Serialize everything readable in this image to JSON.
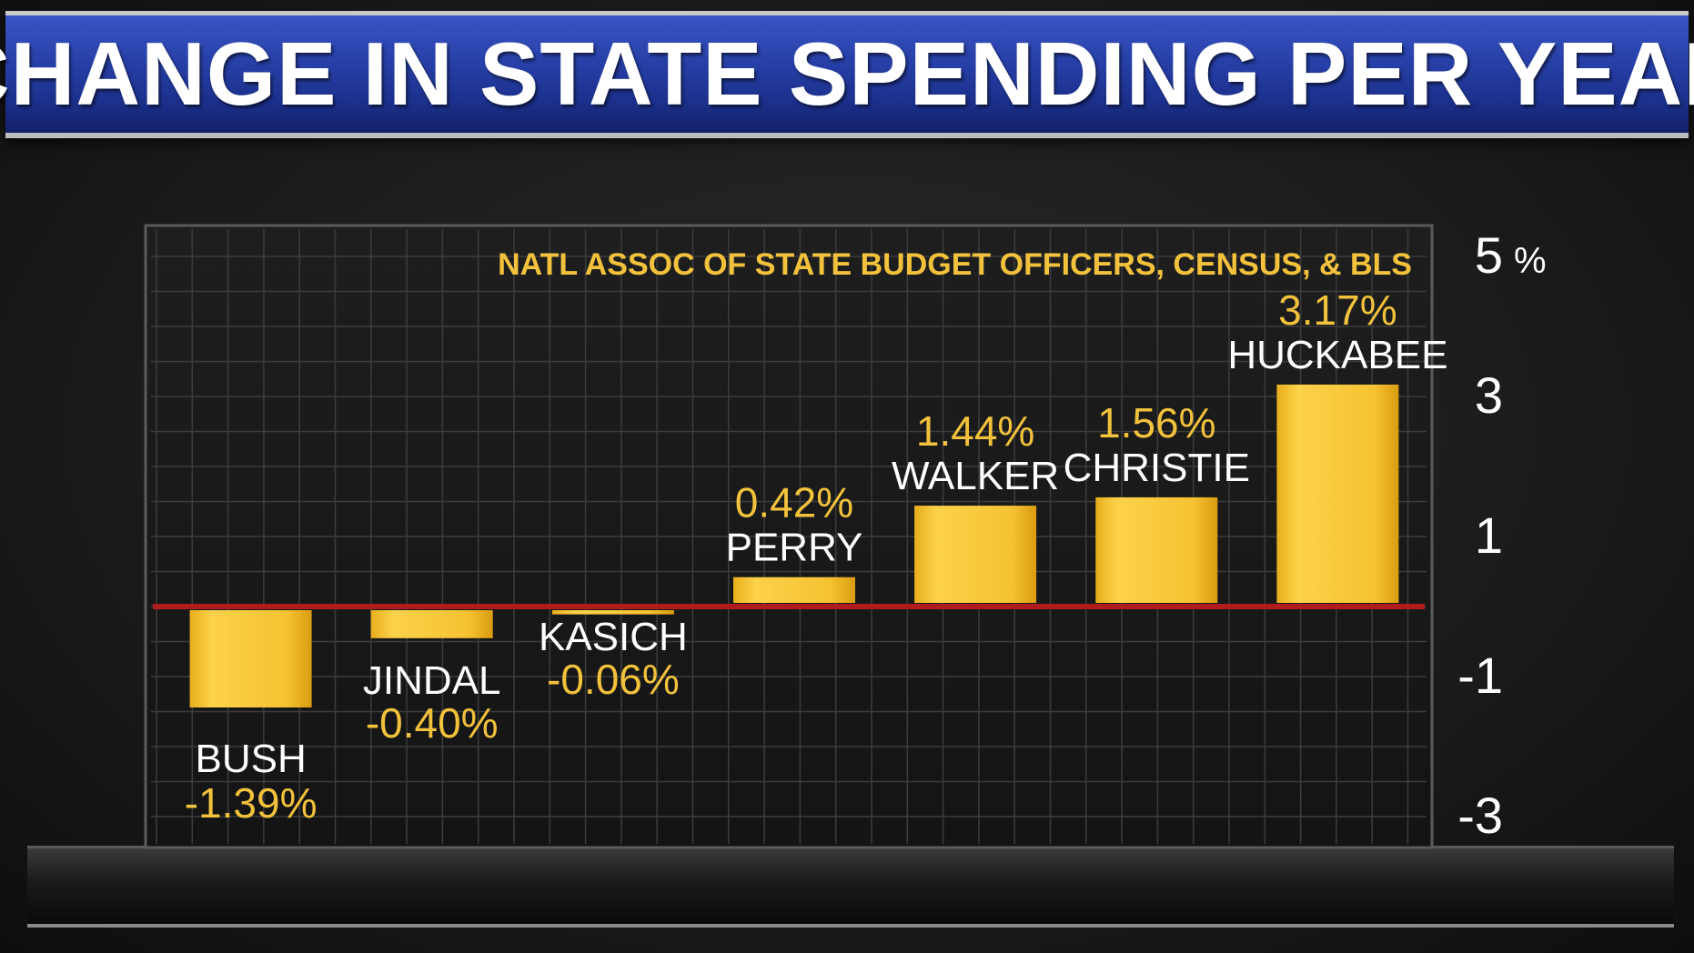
{
  "title": "CHANGE IN STATE SPENDING PER YEAR",
  "colors": {
    "bar": "#f5c436",
    "bar_dark": "#d89f12",
    "value_label": "#f2c23c",
    "name_label": "#ffffff",
    "zero_line": "#b01c1c",
    "title_bg": "#2740a8",
    "grid": "#3c3c3c"
  },
  "chart_data": {
    "type": "bar",
    "source": "NATL ASSOC OF STATE BUDGET OFFICERS, CENSUS, & BLS",
    "categories": [
      "BUSH",
      "JINDAL",
      "KASICH",
      "PERRY",
      "WALKER",
      "CHRISTIE",
      "HUCKABEE"
    ],
    "values": [
      -1.39,
      -0.4,
      -0.06,
      0.42,
      1.44,
      1.56,
      3.17
    ],
    "value_labels": [
      "-1.39%",
      "-0.40%",
      "-0.06%",
      "0.42%",
      "1.44%",
      "1.56%",
      "3.17%"
    ],
    "ylim": [
      -3.3,
      5.0
    ],
    "yticks": [
      5,
      3,
      1,
      -1,
      -3
    ],
    "ytick_labels": [
      "5",
      "3",
      "1",
      "-1",
      "-3"
    ],
    "y_unit": "%",
    "grid": true
  }
}
